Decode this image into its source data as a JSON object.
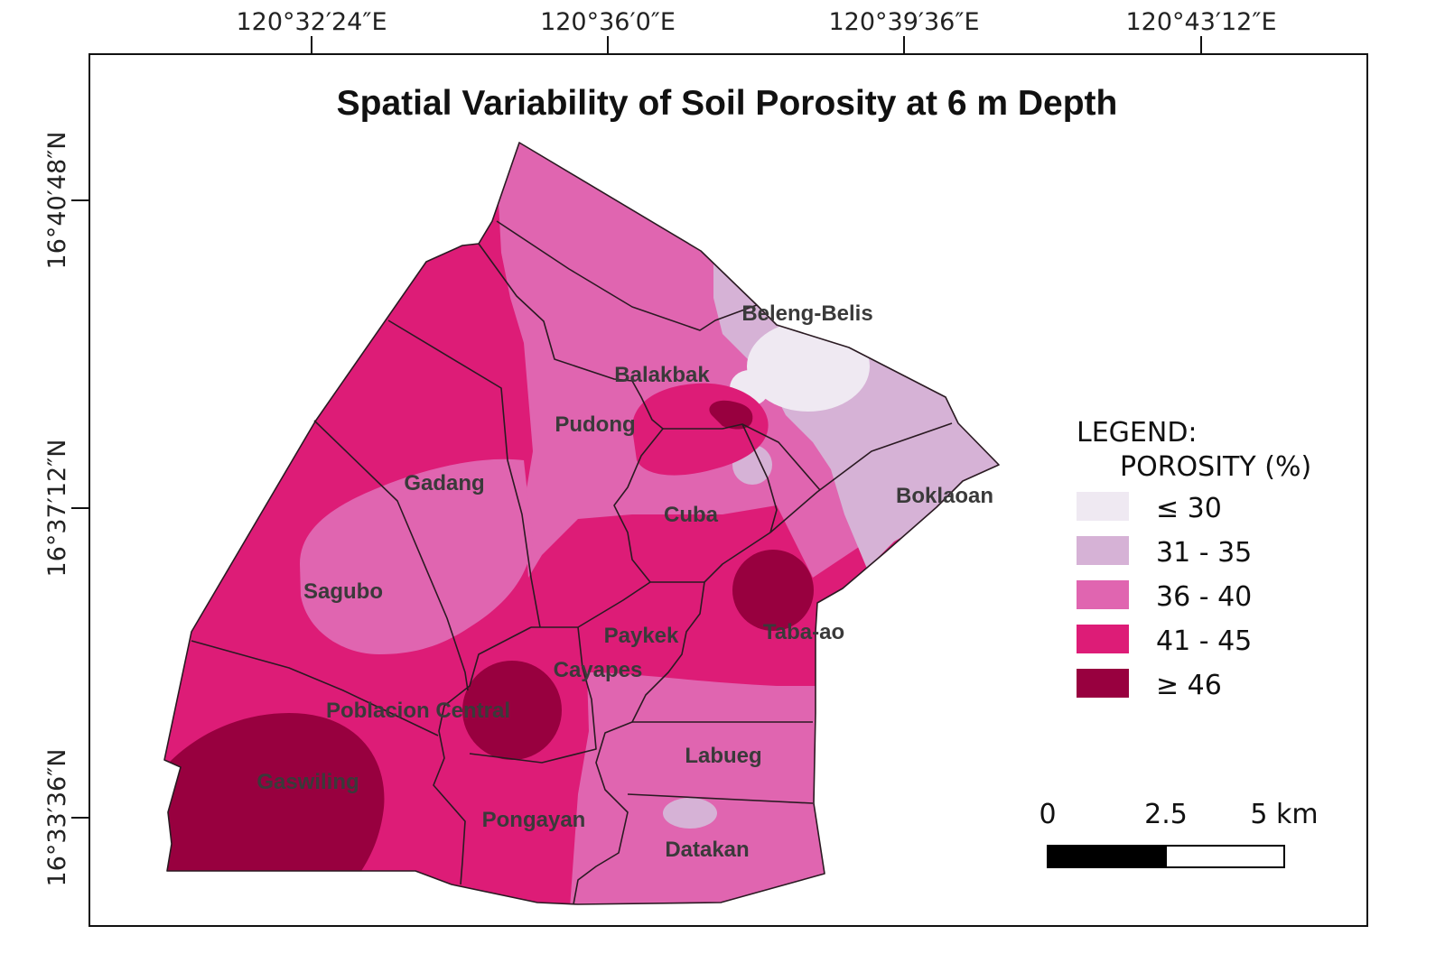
{
  "title": "Spatial Variability of Soil Porosity at 6 m Depth",
  "graticule": {
    "longitude_labels": [
      "120°32′24″E",
      "120°36′0″E",
      "120°39′36″E",
      "120°43′12″E"
    ],
    "latitude_labels": [
      "16°40′48″N",
      "16°37′12″N",
      "16°33′36″N"
    ]
  },
  "places": [
    "Beleng-Belis",
    "Balakbak",
    "Pudong",
    "Gadang",
    "Cuba",
    "Boklaoan",
    "Sagubo",
    "Paykek",
    "Taba-ao",
    "Cayapes",
    "Poblacion Central",
    "Labueg",
    "Gaswiling",
    "Pongayan",
    "Datakan"
  ],
  "legend": {
    "heading": "LEGEND:",
    "subheading": "POROSITY (%)",
    "classes": [
      {
        "label": "≤ 30",
        "color": "#efe9f2"
      },
      {
        "label": "31 - 35",
        "color": "#d6b2d6"
      },
      {
        "label": "36 - 40",
        "color": "#e065b0"
      },
      {
        "label": "41 - 45",
        "color": "#dd1c77"
      },
      {
        "label": "≥ 46",
        "color": "#98003f"
      }
    ]
  },
  "scale_bar": {
    "labels": [
      "0",
      "2.5",
      "5 km"
    ]
  }
}
